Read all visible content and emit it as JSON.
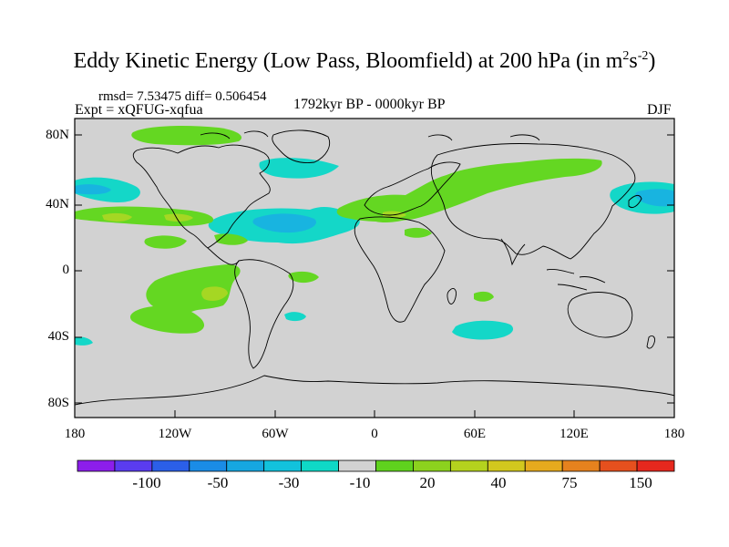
{
  "title": {
    "main": "Eddy Kinetic Energy (Low Pass, Bloomfield) at 200 hPa (in m",
    "sup1": "2",
    "mid": "s",
    "sup2": "-2",
    "end": ")"
  },
  "subtitle": {
    "stats": "rmsd= 7.53475 diff= 0.506454",
    "experiment": "Expt = xQFUG-xqfua",
    "period": "1792kyr BP - 0000kyr BP",
    "season": "DJF"
  },
  "axes": {
    "y_labels": [
      "80N",
      "40N",
      "0",
      "40S",
      "80S"
    ],
    "x_labels": [
      "180",
      "120W",
      "60W",
      "0",
      "60E",
      "120E",
      "180"
    ]
  },
  "colorbar": {
    "labels": [
      "-100",
      "-50",
      "-30",
      "-10",
      "20",
      "40",
      "75",
      "150"
    ],
    "colors": [
      "#8c1eeb",
      "#5a3cf0",
      "#2b5fe8",
      "#1a8ce6",
      "#16a7e1",
      "#12c2dc",
      "#0fd9c6",
      "#d2d2d2",
      "#5fd21e",
      "#8cd21e",
      "#b4d21e",
      "#d2c81e",
      "#e6aa1e",
      "#e6821e",
      "#e6501e",
      "#e6281e"
    ]
  },
  "colors": {
    "land_ocean": "#d2d2d2",
    "positive_low": "#64d722",
    "positive_mid": "#a5d723",
    "negative_low": "#14d7c8",
    "negative_mid": "#18b4e0"
  }
}
